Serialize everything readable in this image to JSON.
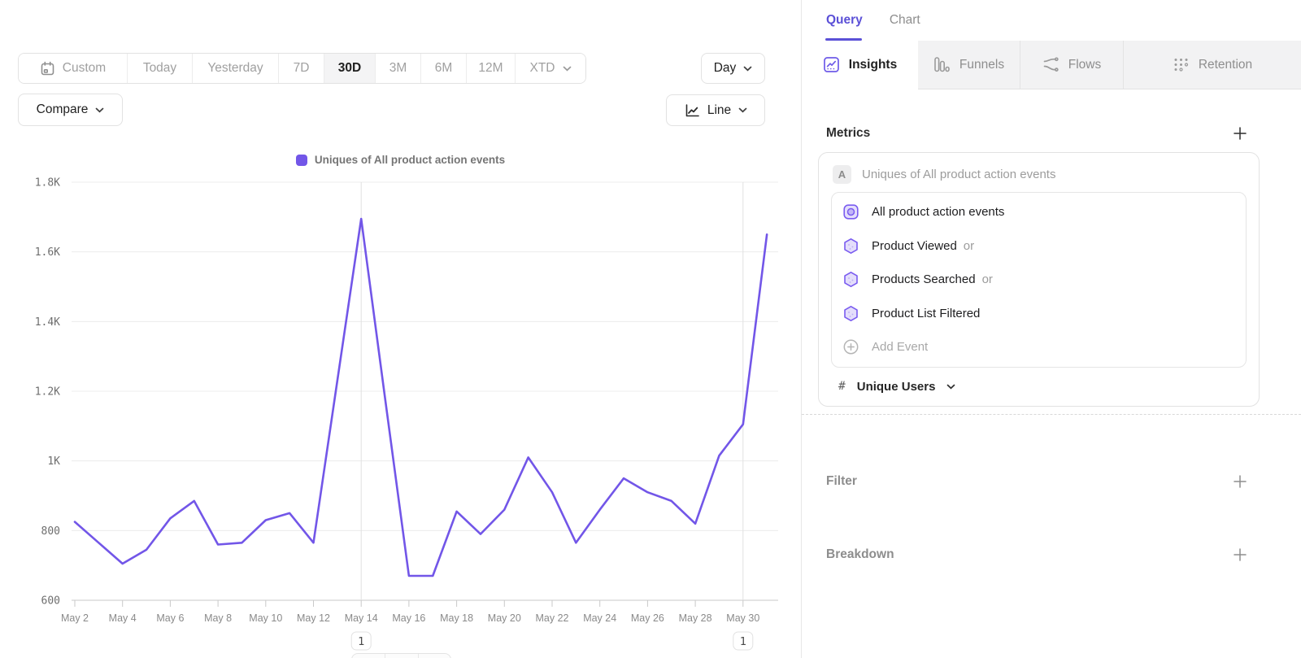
{
  "colors": {
    "accent": "#5B50D7",
    "series": "#7256E8",
    "grid": "#ECECEC",
    "axis": "#C9C9C9",
    "annotation_line": "#E0E0E0",
    "muted_text": "#8E8E8E"
  },
  "toolbar": {
    "date_ranges": [
      "Custom",
      "Today",
      "Yesterday",
      "7D",
      "30D",
      "3M",
      "6M",
      "12M",
      "XTD"
    ],
    "active_range": "30D",
    "granularity": "Day",
    "compare_label": "Compare",
    "chart_type": "Line"
  },
  "panel": {
    "tabs": [
      "Query",
      "Chart"
    ],
    "active_tab": "Query",
    "report_tabs": [
      "Insights",
      "Funnels",
      "Flows",
      "Retention"
    ],
    "active_report_tab": "Insights",
    "metrics": {
      "heading": "Metrics",
      "series_label": "A",
      "series_title": "Uniques of All product action events",
      "events": [
        {
          "name": "All product action events",
          "suffix": ""
        },
        {
          "name": "Product Viewed",
          "suffix": "or"
        },
        {
          "name": "Products Searched",
          "suffix": "or"
        },
        {
          "name": "Product List Filtered",
          "suffix": ""
        }
      ],
      "add_event_label": "Add Event",
      "aggregation_symbol": "#",
      "aggregation": "Unique Users"
    },
    "sections": [
      {
        "label": "Filter"
      },
      {
        "label": "Breakdown"
      }
    ]
  },
  "chart_data": {
    "type": "line",
    "legend": [
      "Uniques of All product action events"
    ],
    "series_color": "#7256E8",
    "x": [
      "May 2",
      "May 3",
      "May 4",
      "May 5",
      "May 6",
      "May 7",
      "May 8",
      "May 9",
      "May 10",
      "May 11",
      "May 12",
      "May 13",
      "May 14",
      "May 15",
      "May 16",
      "May 17",
      "May 18",
      "May 19",
      "May 20",
      "May 21",
      "May 22",
      "May 23",
      "May 24",
      "May 25",
      "May 26",
      "May 27",
      "May 28",
      "May 29",
      "May 30",
      "May 31"
    ],
    "values": [
      825,
      765,
      705,
      745,
      835,
      885,
      760,
      765,
      830,
      850,
      765,
      1230,
      1695,
      1180,
      670,
      670,
      855,
      790,
      860,
      1010,
      910,
      765,
      860,
      950,
      910,
      885,
      820,
      1015,
      1105,
      1650
    ],
    "ylim": [
      600,
      1800
    ],
    "y_ticks": [
      "600",
      "800",
      "1K",
      "1.2K",
      "1.4K",
      "1.6K",
      "1.8K"
    ],
    "x_tick_every": 2,
    "grid": true,
    "legend_position": "top",
    "annotations": [
      {
        "x": "May 14",
        "label": "1"
      },
      {
        "x": "May 30",
        "label": "1"
      }
    ]
  }
}
